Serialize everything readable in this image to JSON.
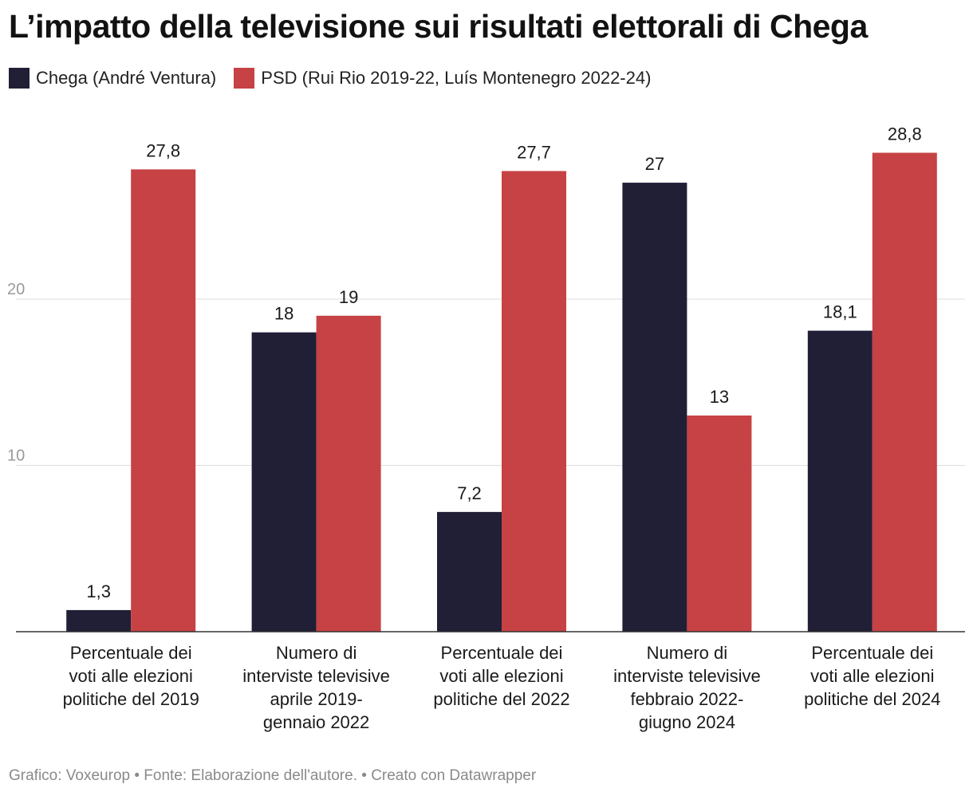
{
  "title": "L’impatto della televisione sui risultati elettorali di Chega",
  "footer": "Grafico: Voxeurop • Fonte: Elaborazione dell'autore. • Creato con Datawrapper",
  "chart_data": {
    "type": "bar",
    "categories": [
      [
        "Percentuale dei",
        "voti alle elezioni",
        "politiche del 2019"
      ],
      [
        "Numero di",
        "interviste televisive",
        "aprile 2019-",
        "gennaio 2022"
      ],
      [
        "Percentuale dei",
        "voti alle elezioni",
        "politiche del 2022"
      ],
      [
        "Numero di",
        "interviste televisive",
        "febbraio 2022-",
        "giugno 2024"
      ],
      [
        "Percentuale dei",
        "voti alle elezioni",
        "politiche del 2024"
      ]
    ],
    "series": [
      {
        "name": "Chega (André Ventura)",
        "color": "#211f36",
        "values": [
          1.3,
          18,
          7.2,
          27,
          18.1
        ],
        "labels": [
          "1,3",
          "18",
          "7,2",
          "27",
          "18,1"
        ]
      },
      {
        "name": "PSD (Rui Rio 2019-22, Luís Montenegro 2022-24)",
        "color": "#c64244",
        "values": [
          27.8,
          19,
          27.7,
          13,
          28.8
        ],
        "labels": [
          "27,8",
          "19",
          "27,7",
          "13",
          "28,8"
        ]
      }
    ],
    "yticks": [
      10,
      20
    ],
    "ylim": [
      0,
      30
    ],
    "grid": true,
    "legend_position": "top-left"
  }
}
